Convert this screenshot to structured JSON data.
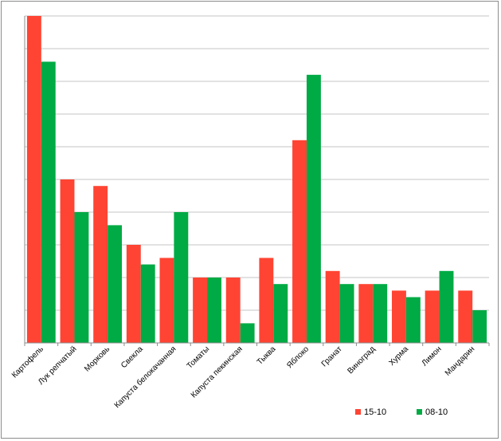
{
  "chart_data": {
    "type": "bar",
    "categories": [
      "Картофель",
      "Лук репчатый",
      "Морковь",
      "Свекла",
      "Капуста белокачанная",
      "Томаты",
      "Капуста пекинская",
      "Тыква",
      "Яблоко",
      "Гранат",
      "Виноград",
      "Хурма",
      "Лимон",
      "Мандарин"
    ],
    "series": [
      {
        "name": "15-10",
        "color": "#ff4433",
        "values": [
          10.0,
          5.0,
          4.8,
          3.0,
          2.6,
          2.0,
          2.0,
          2.6,
          6.2,
          2.2,
          1.8,
          1.6,
          1.6,
          1.6
        ]
      },
      {
        "name": "08-10",
        "color": "#00aa44",
        "values": [
          8.6,
          4.0,
          3.6,
          2.4,
          4.0,
          2.0,
          0.6,
          1.8,
          8.2,
          1.8,
          1.8,
          1.4,
          2.2,
          1.0
        ]
      }
    ],
    "ylim": [
      0,
      10
    ],
    "grid": true,
    "gridlines": 10,
    "legend_position": "bottom-right"
  }
}
